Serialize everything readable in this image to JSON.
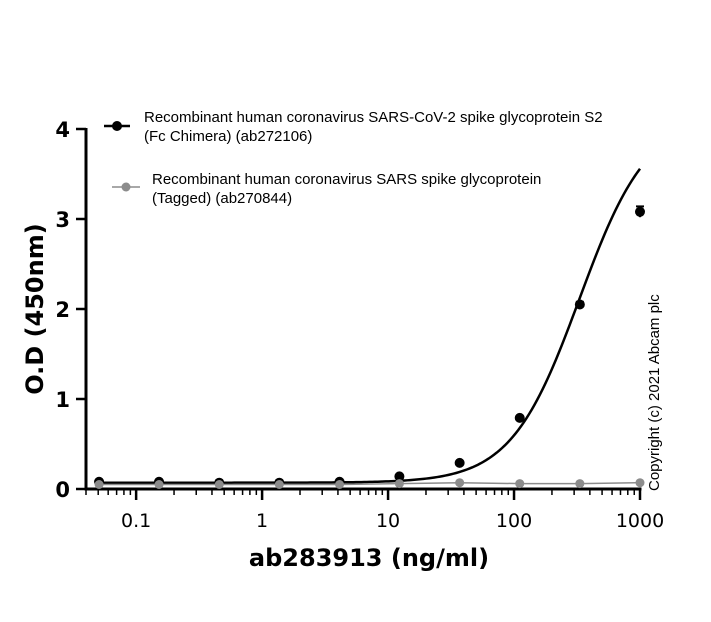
{
  "chart_data": {
    "type": "line",
    "xlabel": "ab283913 (ng/ml)",
    "ylabel": "O.D (450nm)",
    "x_scale": "log",
    "xlim": [
      0.04,
      1000
    ],
    "ylim": [
      0,
      4
    ],
    "x_ticks": [
      0.1,
      1,
      10,
      100,
      1000
    ],
    "x_tick_labels": [
      "0.1",
      "1",
      "10",
      "100",
      "1000"
    ],
    "y_ticks": [
      0,
      1,
      2,
      3,
      4
    ],
    "y_tick_labels": [
      "0",
      "1",
      "2",
      "3",
      "4"
    ],
    "legend_position": "top",
    "series": [
      {
        "name": "Recombinant human coronavirus SARS-CoV-2 spike glycoprotein S2",
        "name_line2": "(Fc Chimera) (ab272106)",
        "color": "#000000",
        "fit": "4PL",
        "x": [
          0.0508,
          0.152,
          0.457,
          1.37,
          4.12,
          12.3,
          37.0,
          111,
          333,
          1000
        ],
        "y": [
          0.08,
          0.08,
          0.07,
          0.07,
          0.08,
          0.14,
          0.29,
          0.79,
          2.05,
          3.08
        ],
        "error": [
          0.01,
          0.01,
          0.01,
          0.01,
          0.01,
          0.01,
          0.02,
          0.02,
          0.03,
          0.06
        ]
      },
      {
        "name": "Recombinant human coronavirus SARS spike glycoprotein",
        "name_line2": "(Tagged) (ab270844)",
        "color": "#8c8c8c",
        "fit": "line",
        "x": [
          0.0508,
          0.152,
          0.457,
          1.37,
          4.12,
          12.3,
          37.0,
          111,
          333,
          1000
        ],
        "y": [
          0.05,
          0.05,
          0.05,
          0.05,
          0.05,
          0.06,
          0.07,
          0.06,
          0.06,
          0.07
        ],
        "error": [
          0,
          0,
          0,
          0,
          0,
          0,
          0,
          0,
          0,
          0
        ]
      }
    ],
    "annotation": "Copyright (c) 2021 Abcam plc"
  }
}
